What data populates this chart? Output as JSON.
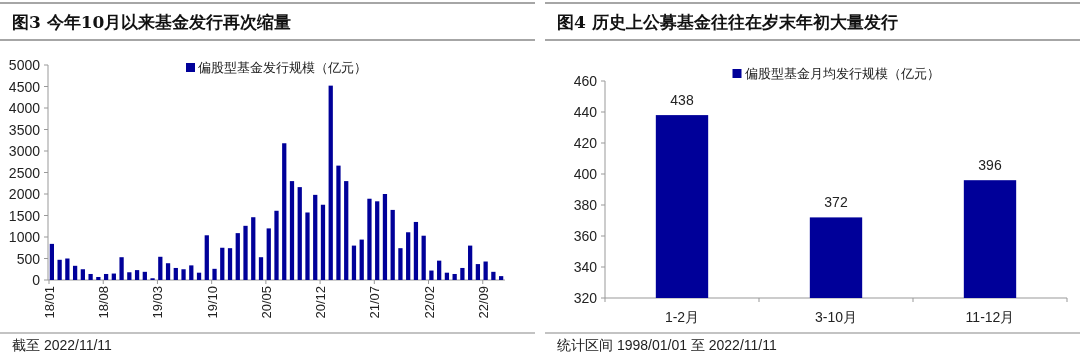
{
  "chart_data": [
    {
      "type": "bar",
      "title": "图3  今年10月以来基金发行再次缩量",
      "categories": [
        "18/01",
        null,
        null,
        null,
        null,
        null,
        null,
        "18/08",
        null,
        null,
        null,
        null,
        null,
        null,
        "19/03",
        null,
        null,
        null,
        null,
        null,
        null,
        "19/10",
        null,
        null,
        null,
        null,
        null,
        null,
        "20/05",
        null,
        null,
        null,
        null,
        null,
        null,
        "20/12",
        null,
        null,
        null,
        null,
        null,
        null,
        "21/07",
        null,
        null,
        null,
        null,
        null,
        null,
        "22/02",
        null,
        null,
        null,
        null,
        null,
        null,
        "22/09",
        null,
        null
      ],
      "series": [
        {
          "name": "偏股型基金发行规模（亿元）",
          "color": "#000099",
          "values": [
            840,
            470,
            500,
            330,
            250,
            140,
            70,
            140,
            150,
            530,
            180,
            230,
            190,
            40,
            540,
            390,
            280,
            250,
            340,
            170,
            1040,
            260,
            750,
            740,
            1090,
            1260,
            1460,
            530,
            1200,
            1610,
            3180,
            2300,
            2160,
            1570,
            1980,
            1750,
            4520,
            2660,
            2300,
            800,
            940,
            1890,
            1830,
            2000,
            1630,
            740,
            1110,
            1350,
            1030,
            220,
            450,
            170,
            140,
            280,
            800,
            370,
            430,
            190,
            90
          ]
        }
      ],
      "ylim": [
        0,
        5000
      ],
      "yticks": [
        0,
        500,
        1000,
        1500,
        2000,
        2500,
        3000,
        3500,
        4000,
        4500,
        5000
      ],
      "legend": "top",
      "annotations": [
        "截至 2022/11/11"
      ]
    },
    {
      "type": "bar",
      "title": "图4  历史上公募基金往往在岁末年初大量发行",
      "categories": [
        "1-2月",
        "3-10月",
        "11-12月"
      ],
      "series": [
        {
          "name": "偏股型基金月均发行规模（亿元）",
          "color": "#000099",
          "values": [
            438,
            372,
            396
          ]
        }
      ],
      "ylim": [
        320,
        460
      ],
      "yticks": [
        320,
        340,
        360,
        380,
        400,
        420,
        440,
        460
      ],
      "data_labels": true,
      "legend": "top",
      "annotations": [
        "统计区间 1998/01/01 至 2022/11/11"
      ]
    }
  ]
}
